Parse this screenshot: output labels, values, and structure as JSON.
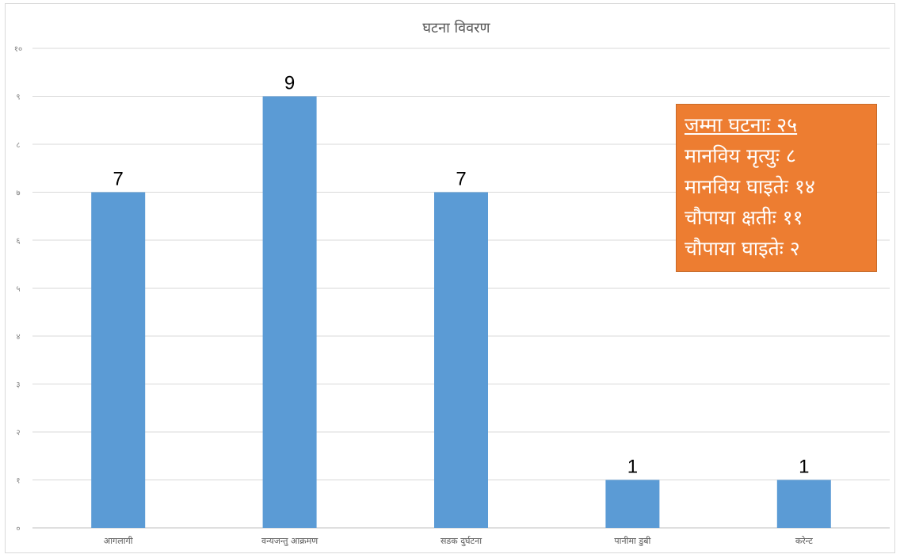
{
  "colors": {
    "bar": "#5b9bd5",
    "summary_bg": "#ed7d31",
    "summary_text": "#ffffff"
  },
  "chart_data": {
    "type": "bar",
    "title": "घटना विवरण",
    "categories": [
      "आगलागी",
      "वन्यजन्तु आक्रमण",
      "सडक दुर्घटना",
      "पानीमा डुबी",
      "करेन्ट"
    ],
    "values": [
      7,
      9,
      7,
      1,
      1
    ],
    "data_labels": [
      "7",
      "9",
      "7",
      "1",
      "1"
    ],
    "y_ticks": [
      "०",
      "१",
      "२",
      "३",
      "४",
      "५",
      "६",
      "७",
      "८",
      "९",
      "१०"
    ],
    "ylim": [
      0,
      10
    ],
    "xlabel": "",
    "ylabel": "",
    "grid": true,
    "legend": "none"
  },
  "summary": {
    "lines": [
      "जम्मा घटनाः २५",
      "मानविय मृत्युः ८",
      "मानविय घाइतेः १४",
      "चौपाया क्षतीः ११",
      "चौपाया घाइतेः २"
    ]
  }
}
